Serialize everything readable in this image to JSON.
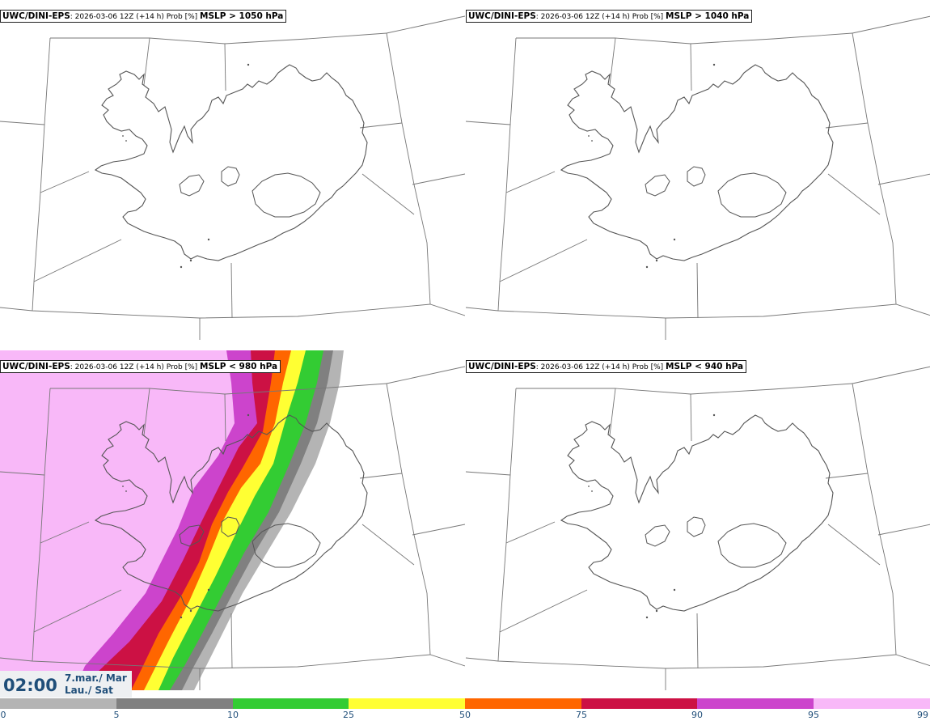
{
  "panels": [
    {
      "model": "UWC/DINI-EPS",
      "info": ": 2026-03-06 12Z (+14 h) Prob [%] ",
      "threshold": "MSLP > 1050 hPa"
    },
    {
      "model": "UWC/DINI-EPS",
      "info": ": 2026-03-06 12Z (+14 h) Prob [%] ",
      "threshold": "MSLP > 1040 hPa"
    },
    {
      "model": "UWC/DINI-EPS",
      "info": ": 2026-03-06 12Z (+14 h) Prob [%] ",
      "threshold": "MSLP < 980 hPa"
    },
    {
      "model": "UWC/DINI-EPS",
      "info": ": 2026-03-06 12Z (+14 h) Prob [%] ",
      "threshold": "MSLP < 940 hPa"
    }
  ],
  "valid_time": {
    "time": "02:00",
    "date_line1": "7.mar./ Mar",
    "date_line2": "Lau./ Sat"
  },
  "colorbar": {
    "labels": [
      "0",
      "5",
      "10",
      "25",
      "50",
      "75",
      "90",
      "95",
      "99"
    ],
    "colors": [
      "#ffffff",
      "#b4b4b4",
      "#808080",
      "#33cc33",
      "#ffff33",
      "#ff6600",
      "#cc1144",
      "#cc44cc",
      "#f8b8f8"
    ]
  }
}
